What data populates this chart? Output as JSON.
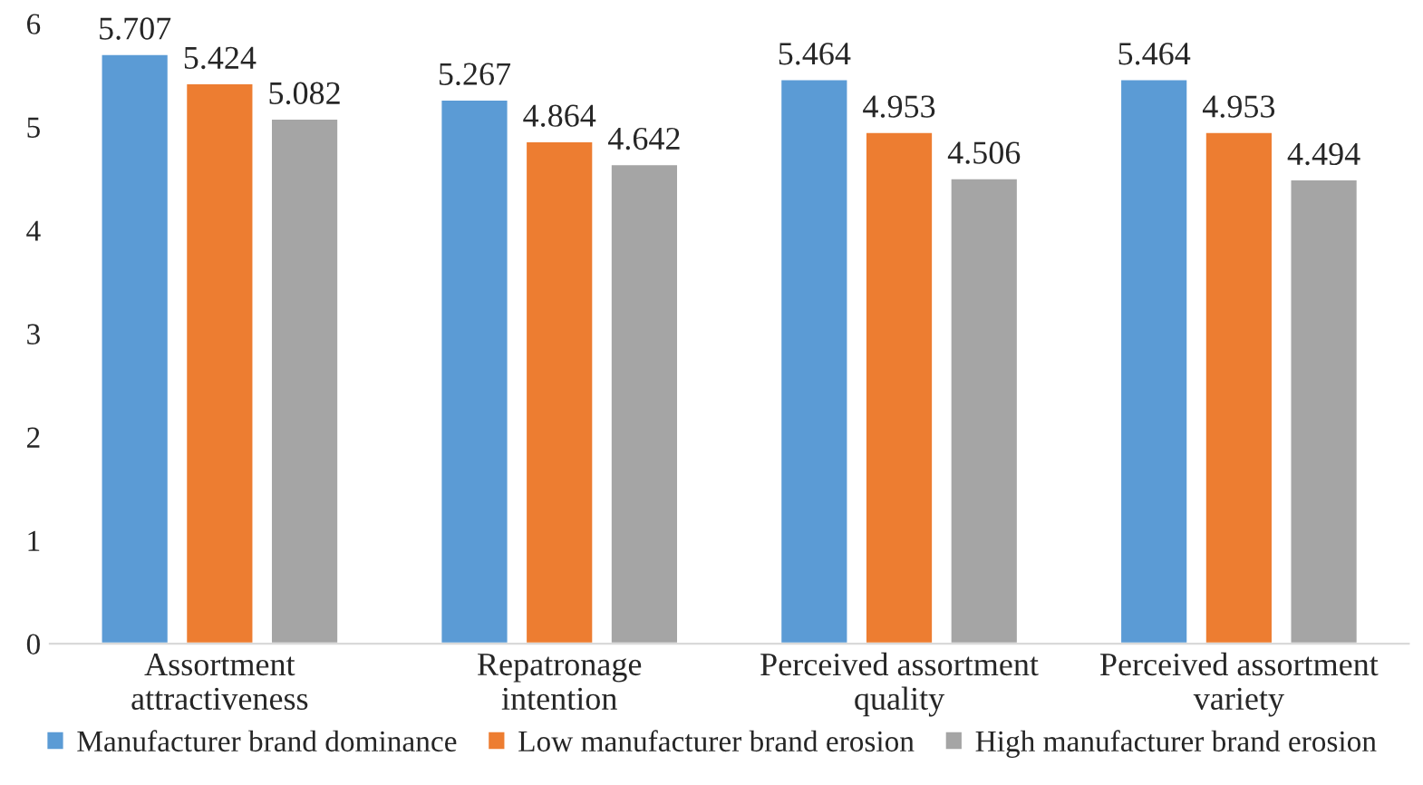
{
  "chart_data": {
    "type": "bar",
    "categories": [
      "Assortment\nattractiveness",
      "Repatronage\nintention",
      "Perceived assortment\nquality",
      "Perceived assortment\nvariety"
    ],
    "series": [
      {
        "name": "Manufacturer brand dominance",
        "color": "#5b9bd5",
        "values": [
          5.707,
          5.267,
          5.464,
          5.464
        ]
      },
      {
        "name": "Low manufacturer brand erosion",
        "color": "#ed7d31",
        "values": [
          5.424,
          4.864,
          4.953,
          4.953
        ]
      },
      {
        "name": "High manufacturer brand erosion",
        "color": "#a5a5a5",
        "values": [
          5.082,
          4.642,
          4.506,
          4.494
        ]
      }
    ],
    "ylim": [
      0,
      6
    ],
    "yticks": [
      0,
      1,
      2,
      3,
      4,
      5,
      6
    ],
    "grid": false,
    "legend": "bottom",
    "data_labels": true
  }
}
